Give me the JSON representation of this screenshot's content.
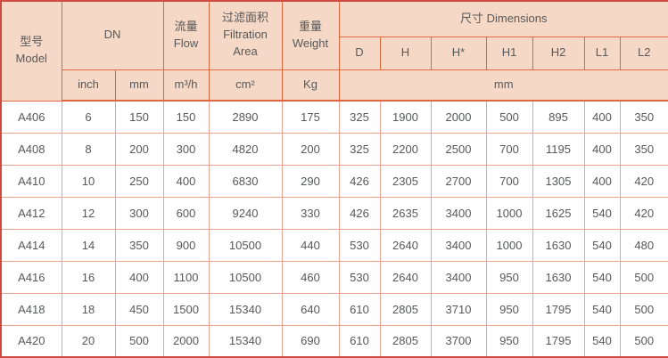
{
  "colors": {
    "header_bg": "#f5d9c6",
    "border_outer": "#cf4a40",
    "border_header": "#e2663d",
    "border_data": "#efa193",
    "text": "#57585a"
  },
  "header": {
    "model": "型号\nModel",
    "dn": "DN",
    "flow": "流量\nFlow",
    "filtration_area": "过滤面积\nFiltration\nArea",
    "weight": "重量\nWeight",
    "dimensions": "尺寸 Dimensions",
    "dimension_columns": [
      "D",
      "H",
      "H*",
      "H1",
      "H2",
      "L1",
      "L2"
    ],
    "units": {
      "dn_inch": "inch",
      "dn_mm": "mm",
      "flow": "m³/h",
      "filtration_area": "cm²",
      "weight": "Kg",
      "dimensions": "mm"
    }
  },
  "rows": [
    [
      "A406",
      "6",
      "150",
      "150",
      "2890",
      "175",
      "325",
      "1900",
      "2000",
      "500",
      "895",
      "400",
      "350"
    ],
    [
      "A408",
      "8",
      "200",
      "300",
      "4820",
      "200",
      "325",
      "2200",
      "2500",
      "700",
      "1195",
      "400",
      "350"
    ],
    [
      "A410",
      "10",
      "250",
      "400",
      "6830",
      "290",
      "426",
      "2305",
      "2700",
      "700",
      "1305",
      "400",
      "420"
    ],
    [
      "A412",
      "12",
      "300",
      "600",
      "9240",
      "330",
      "426",
      "2635",
      "3400",
      "1000",
      "1625",
      "540",
      "420"
    ],
    [
      "A414",
      "14",
      "350",
      "900",
      "10500",
      "440",
      "530",
      "2640",
      "3400",
      "1000",
      "1630",
      "540",
      "480"
    ],
    [
      "A416",
      "16",
      "400",
      "1100",
      "10500",
      "460",
      "530",
      "2640",
      "3400",
      "950",
      "1630",
      "540",
      "500"
    ],
    [
      "A418",
      "18",
      "450",
      "1500",
      "15340",
      "640",
      "610",
      "2805",
      "3710",
      "950",
      "1795",
      "540",
      "500"
    ],
    [
      "A420",
      "20",
      "500",
      "2000",
      "15340",
      "690",
      "610",
      "2805",
      "3700",
      "950",
      "1795",
      "540",
      "500"
    ]
  ],
  "chart_data": {
    "type": "table",
    "title": "尺寸 Dimensions specification table",
    "columns": [
      "型号 Model",
      "DN inch",
      "DN mm",
      "流量 Flow m³/h",
      "过滤面积 Filtration Area cm²",
      "重量 Weight Kg",
      "D mm",
      "H mm",
      "H* mm",
      "H1 mm",
      "H2 mm",
      "L1 mm",
      "L2 mm"
    ]
  }
}
